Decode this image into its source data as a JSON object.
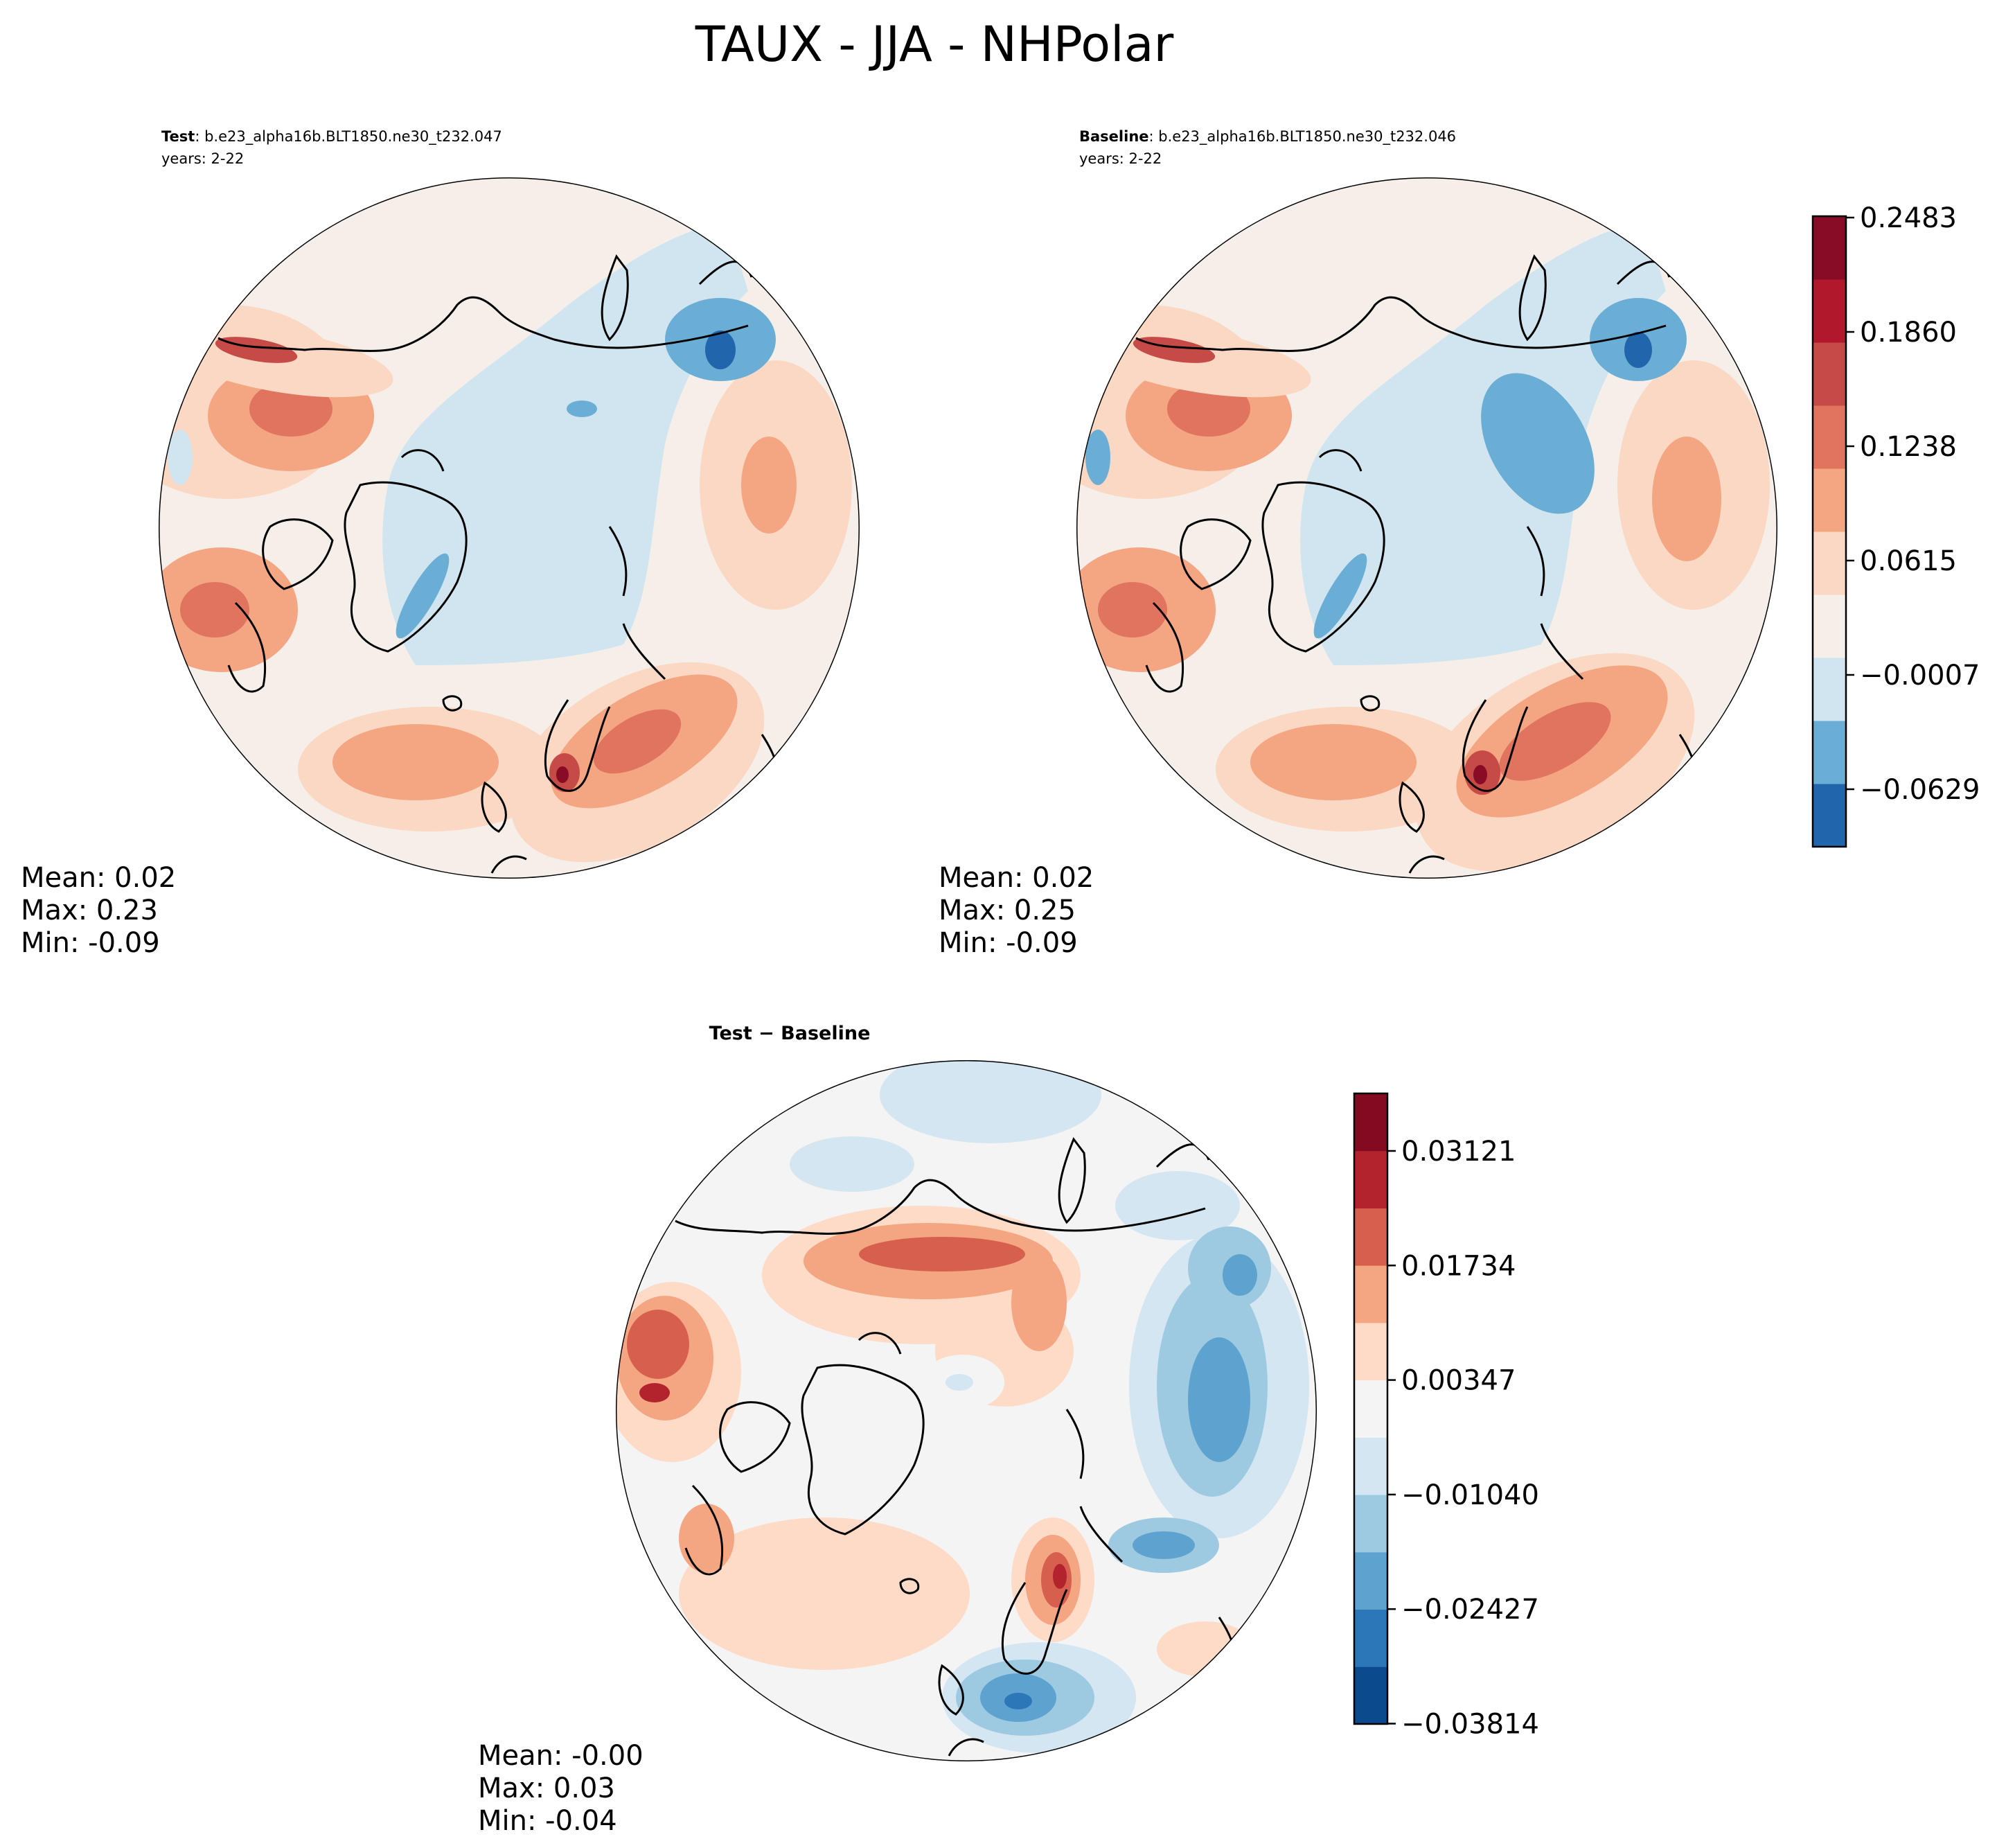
{
  "title": "TAUX - JJA - NHPolar",
  "panels": [
    {
      "id": "test",
      "title_bold": "Test",
      "title_rest": ": b.e23_alpha16b.BLT1850.ne30_t232.047",
      "subtitle": "years: 2-22",
      "stats": {
        "mean": "Mean:  0.02",
        "max": "Max:  0.23",
        "min": "Min: -0.09"
      }
    },
    {
      "id": "baseline",
      "title_bold": "Baseline",
      "title_rest": ": b.e23_alpha16b.BLT1850.ne30_t232.046",
      "subtitle": "years: 2-22",
      "stats": {
        "mean": "Mean:  0.02",
        "max": "Max:  0.25",
        "min": "Min: -0.09"
      }
    },
    {
      "id": "diff",
      "title_bold": "Test − Baseline",
      "stats": {
        "mean": "Mean: -0.00",
        "max": "Max:  0.03",
        "min": "Min: -0.04"
      }
    }
  ],
  "colorbars": [
    {
      "id": "main",
      "colors": [
        "#2166ac",
        "#6aadd5",
        "#d1e5f0",
        "#f6efe9",
        "#fbd8c3",
        "#f4a582",
        "#e0745f",
        "#c64a45",
        "#b2182b",
        "#880c25"
      ],
      "tick_labels": [
        "0.2483",
        "0.1860",
        "0.1238",
        "0.0615",
        "−0.0007",
        "−0.0629"
      ]
    },
    {
      "id": "diff",
      "colors": [
        "#0b4a8c",
        "#2c77b8",
        "#5ea3d0",
        "#9ecae1",
        "#d3e6f1",
        "#f4f4f4",
        "#fddbc7",
        "#f4a582",
        "#d6604d",
        "#b2232e",
        "#820b22"
      ],
      "tick_labels": [
        "0.03121",
        "0.01734",
        "0.00347",
        "−0.01040",
        "−0.02427",
        "−0.03814"
      ]
    }
  ],
  "map_colors": {
    "land_outline": "#000000",
    "ocean_neutral": "#f6efe9",
    "diff_neutral": "#f4f4f4"
  }
}
